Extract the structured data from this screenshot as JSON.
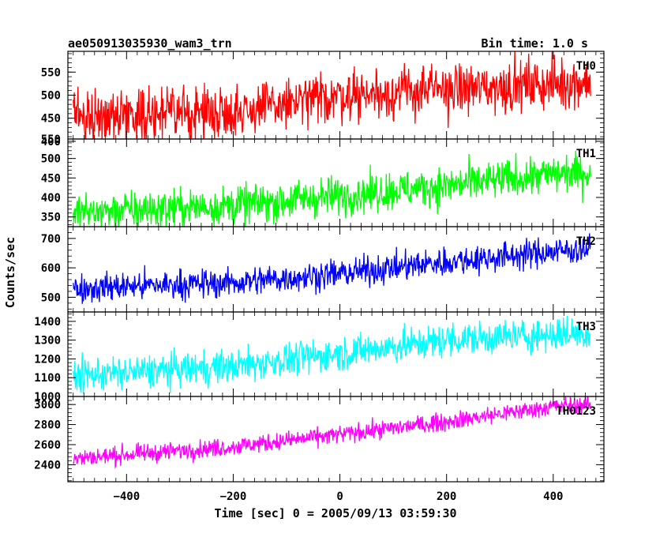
{
  "header": {
    "title": "ae050913035930_wam3_trn",
    "bin_time": "Bin time: 1.0 s"
  },
  "axes": {
    "xlabel": "Time [sec] 0 = 2005/09/13 03:59:30",
    "ylabel": "Counts/sec"
  },
  "chart_data": {
    "type": "line",
    "title": "ae050913035930_wam3_trn",
    "subtitle": "Bin time: 1.0 s",
    "xlabel": "Time [sec] 0 = 2005/09/13 03:59:30",
    "ylabel": "Counts/sec",
    "xlim": [
      -510,
      495
    ],
    "x_ticks": [
      -400,
      -200,
      0,
      200,
      400
    ],
    "x_step": 1.0,
    "x_range": [
      -500,
      470
    ],
    "grid": false,
    "panels": [
      {
        "name": "TH0",
        "color": "#ff0000",
        "ylim": [
          405,
          595
        ],
        "yticks": [
          400,
          450,
          500,
          550
        ],
        "trend": [
          [
            -500,
            455
          ],
          [
            -200,
            465
          ],
          [
            -100,
            480
          ],
          [
            0,
            500
          ],
          [
            200,
            512
          ],
          [
            400,
            525
          ],
          [
            470,
            530
          ]
        ],
        "noise_sd": 28
      },
      {
        "name": "TH1",
        "color": "#00ff00",
        "ylim": [
          325,
          550
        ],
        "yticks": [
          350,
          400,
          450,
          500,
          550
        ],
        "trend": [
          [
            -500,
            360
          ],
          [
            -200,
            380
          ],
          [
            0,
            405
          ],
          [
            200,
            430
          ],
          [
            400,
            460
          ],
          [
            470,
            465
          ]
        ],
        "noise_sd": 25
      },
      {
        "name": "TH2",
        "color": "#0000ff",
        "ylim": [
          450,
          740
        ],
        "yticks": [
          500,
          600,
          700
        ],
        "trend": [
          [
            -500,
            530
          ],
          [
            -200,
            550
          ],
          [
            0,
            580
          ],
          [
            200,
            620
          ],
          [
            400,
            655
          ],
          [
            470,
            665
          ]
        ],
        "noise_sd": 25
      },
      {
        "name": "TH3",
        "color": "#00ffff",
        "ylim": [
          1000,
          1450
        ],
        "yticks": [
          1000,
          1100,
          1200,
          1300,
          1400
        ],
        "trend": [
          [
            -500,
            1110
          ],
          [
            -200,
            1160
          ],
          [
            0,
            1230
          ],
          [
            200,
            1300
          ],
          [
            400,
            1330
          ],
          [
            470,
            1340
          ]
        ],
        "noise_sd": 45
      },
      {
        "name": "TH0123",
        "color": "#ff00ff",
        "ylim": [
          2230,
          3080
        ],
        "yticks": [
          2400,
          2600,
          2800,
          3000
        ],
        "trend": [
          [
            -500,
            2460
          ],
          [
            -200,
            2580
          ],
          [
            0,
            2700
          ],
          [
            200,
            2830
          ],
          [
            400,
            2980
          ],
          [
            470,
            3000
          ]
        ],
        "noise_sd": 45
      }
    ],
    "x_tick_labels": [
      "−400",
      "−200",
      "0",
      "200",
      "400"
    ]
  }
}
